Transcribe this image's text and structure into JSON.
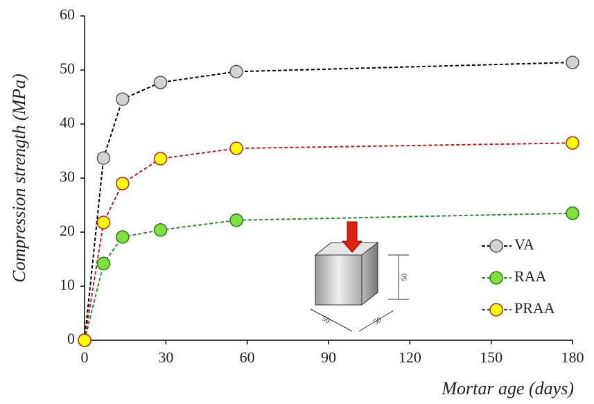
{
  "chart_data": {
    "type": "line",
    "y_label": "Compression strength (MPa)",
    "x_label": "Mortar age (days)",
    "x": [
      0,
      7,
      14,
      28,
      56,
      180
    ],
    "series": [
      {
        "name": "VA",
        "color": "#000000",
        "marker_fill": "#d3d3d3",
        "marker_stroke": "#555555",
        "values": [
          0,
          33.7,
          44.6,
          47.7,
          49.7,
          51.4
        ]
      },
      {
        "name": "RAA",
        "color": "#2e8b2e",
        "marker_fill": "#80e040",
        "marker_stroke": "#2a7a1a",
        "values": [
          0,
          14.2,
          19.1,
          20.4,
          22.2,
          23.5
        ]
      },
      {
        "name": "PRAA",
        "color": "#b22222",
        "marker_fill": "#ffff00",
        "marker_stroke": "#c02020",
        "values": [
          0,
          21.8,
          29.0,
          33.6,
          35.5,
          36.5
        ]
      }
    ],
    "xlim": [
      0,
      180
    ],
    "xticks": [
      0,
      30,
      60,
      90,
      120,
      150,
      180
    ],
    "ylim": [
      0,
      60
    ],
    "yticks": [
      0,
      10,
      20,
      30,
      40,
      50,
      60
    ],
    "grid": false,
    "legend": "lower right",
    "annotations": [
      "50",
      "50",
      "50"
    ]
  }
}
